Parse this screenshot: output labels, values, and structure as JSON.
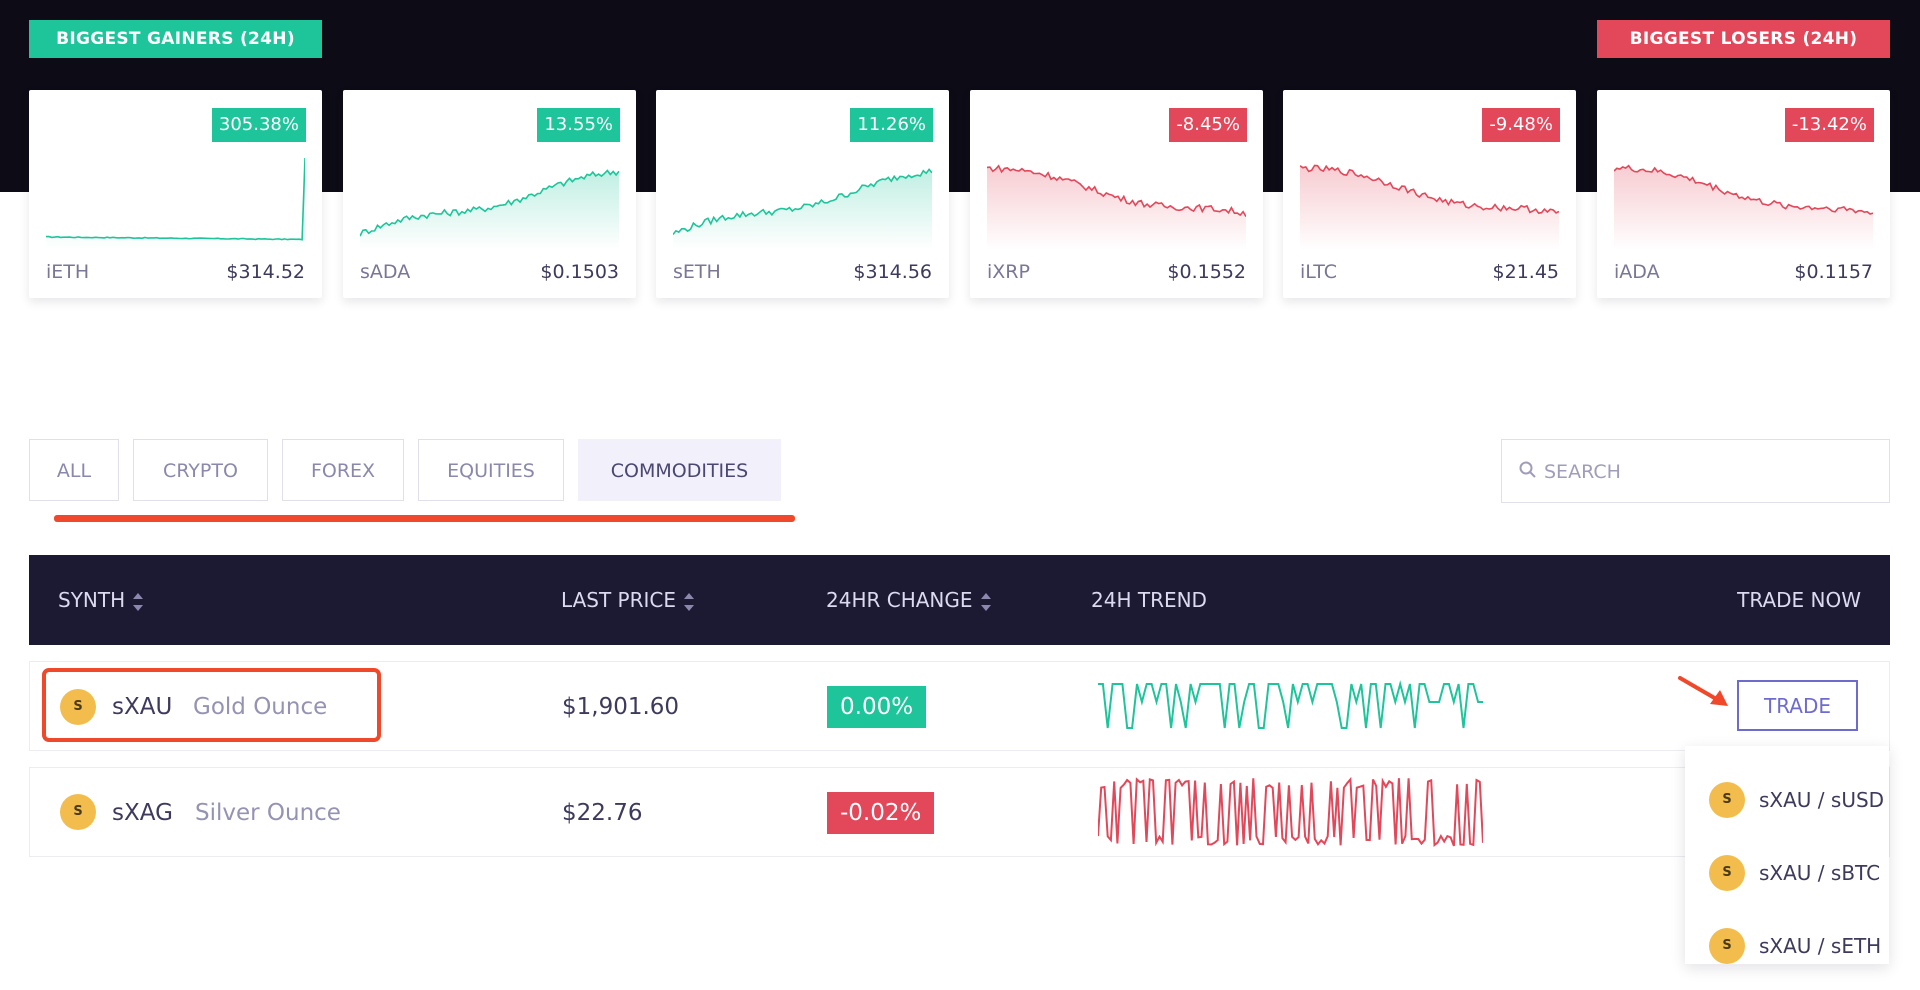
{
  "banners": {
    "gainers": "BIGGEST GAINERS (24H)",
    "losers": "BIGGEST LOSERS (24H)"
  },
  "cards": [
    {
      "symbol": "iETH",
      "price": "$314.52",
      "change": "305.38%",
      "trend": "up",
      "color": "#1ec59a"
    },
    {
      "symbol": "sADA",
      "price": "$0.1503",
      "change": "13.55%",
      "trend": "up",
      "color": "#1ec59a"
    },
    {
      "symbol": "sETH",
      "price": "$314.56",
      "change": "11.26%",
      "trend": "up",
      "color": "#1ec59a"
    },
    {
      "symbol": "iXRP",
      "price": "$0.1552",
      "change": "-8.45%",
      "trend": "down",
      "color": "#e2485a"
    },
    {
      "symbol": "iLTC",
      "price": "$21.45",
      "change": "-9.48%",
      "trend": "down",
      "color": "#e2485a"
    },
    {
      "symbol": "iADA",
      "price": "$0.1157",
      "change": "-13.42%",
      "trend": "down",
      "color": "#e2485a"
    }
  ],
  "tabs": [
    "ALL",
    "CRYPTO",
    "FOREX",
    "EQUITIES",
    "COMMODITIES"
  ],
  "active_tab": "COMMODITIES",
  "search": {
    "placeholder": "SEARCH"
  },
  "table": {
    "headers": {
      "synth": "SYNTH",
      "last_price": "LAST PRICE",
      "change": "24HR CHANGE",
      "trend": "24H TREND",
      "trade": "TRADE NOW"
    },
    "rows": [
      {
        "symbol": "sXAU",
        "name": "Gold Ounce",
        "price": "$1,901.60",
        "change": "0.00%",
        "direction": "up"
      },
      {
        "symbol": "sXAG",
        "name": "Silver Ounce",
        "price": "$22.76",
        "change": "-0.02%",
        "direction": "down"
      }
    ]
  },
  "trade_button": "TRADE",
  "trade_menu": [
    "sXAU / sUSD",
    "sXAU / sBTC",
    "sXAU / sETH"
  ],
  "coin_glyph": "S",
  "colors": {
    "up": "#1ec59a",
    "down": "#e2485a",
    "header_bg": "#1c1a33",
    "accent": "#f0482a",
    "trade": "#6e6bcf",
    "coin": "#f3bd4e"
  }
}
